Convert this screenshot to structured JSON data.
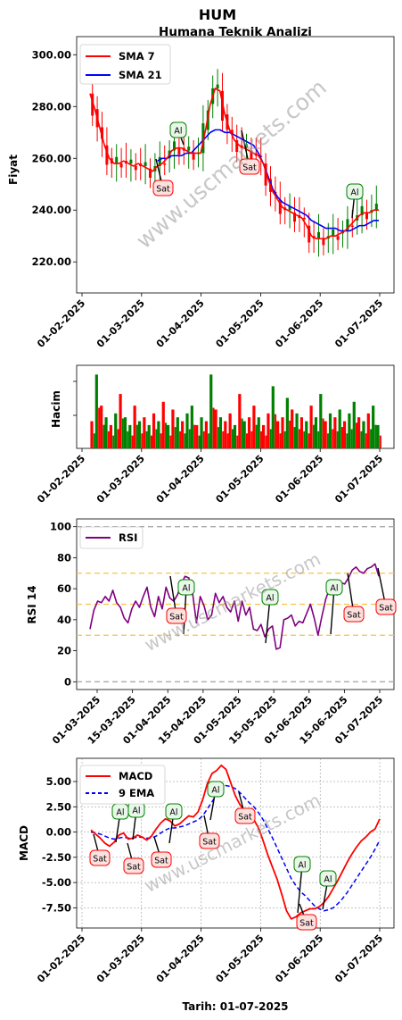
{
  "header": {
    "title": "HUM",
    "subtitle": "Humana Teknik Analizi"
  },
  "footer": {
    "date_label": "Tarih: 01-07-2025"
  },
  "watermark": "www.uscmarkets.com",
  "colors": {
    "sma7": "#ff0000",
    "sma21": "#0000ff",
    "rsi": "#800080",
    "macd": "#ff0000",
    "ema9": "#0000ff",
    "up": "#008000",
    "down": "#ff0000"
  },
  "chart_data": [
    {
      "type": "line",
      "title": "Humana Teknik Analizi",
      "ylabel": "Fiyat",
      "ylim": [
        208,
        307
      ],
      "y_ticks": [
        "220.00",
        "240.00",
        "260.00",
        "280.00",
        "300.00"
      ],
      "x_ticks": [
        "01-02-2025",
        "01-03-2025",
        "01-04-2025",
        "01-05-2025",
        "01-06-2025",
        "01-07-2025"
      ],
      "legend": "top-left",
      "series": [
        {
          "name": "SMA 7",
          "values": [
            285,
            279,
            272,
            265,
            260,
            258,
            258,
            259,
            258,
            257,
            258,
            257,
            256,
            255,
            257,
            258,
            260,
            263,
            264,
            264,
            263,
            262,
            262,
            262,
            271,
            281,
            287,
            286,
            277,
            271,
            267,
            265,
            264,
            263,
            262,
            261,
            258,
            252,
            247,
            244,
            241,
            240,
            239,
            238,
            237,
            234,
            230,
            229,
            229,
            229,
            230,
            230,
            231,
            232,
            234,
            236,
            238,
            239,
            239,
            240,
            240
          ]
        },
        {
          "name": "SMA 21",
          "values": [
            null,
            null,
            null,
            null,
            null,
            null,
            null,
            null,
            null,
            null,
            null,
            null,
            null,
            null,
            259,
            260,
            260,
            261,
            261,
            261,
            262,
            262,
            264,
            266,
            268,
            270,
            271,
            271,
            270,
            270,
            269,
            268,
            267,
            266,
            265,
            262,
            258,
            253,
            248,
            245,
            243,
            242,
            241,
            240,
            239,
            238,
            236,
            235,
            234,
            233,
            233,
            233,
            232,
            232,
            232,
            233,
            234,
            234,
            235,
            236,
            236
          ]
        }
      ],
      "annotations": [
        "Al",
        "Al",
        "Sat",
        "Sat"
      ]
    },
    {
      "type": "bar",
      "ylabel": "Hacim",
      "x_ticks": [
        "01-02-2025",
        "01-03-2025",
        "01-04-2025",
        "01-05-2025",
        "01-06-2025",
        "01-07-2025"
      ],
      "values": [
        0.35,
        0.95,
        0.55,
        0.4,
        0.3,
        0.45,
        0.7,
        0.4,
        0.3,
        0.55,
        0.35,
        0.4,
        0.3,
        0.45,
        0.35,
        0.6,
        0.3,
        0.5,
        0.4,
        0.35,
        0.45,
        0.55,
        0.3,
        0.4,
        0.35,
        0.95,
        0.5,
        0.4,
        0.35,
        0.45,
        0.3,
        0.7,
        0.35,
        0.4,
        0.55,
        0.4,
        0.3,
        0.45,
        0.8,
        0.35,
        0.4,
        0.65,
        0.5,
        0.45,
        0.4,
        0.35,
        0.55,
        0.4,
        0.7,
        0.35,
        0.45,
        0.4,
        0.5,
        0.35,
        0.45,
        0.6,
        0.4,
        0.35,
        0.45,
        0.55,
        0.3
      ],
      "direction": [
        "d",
        "u",
        "d",
        "u",
        "d",
        "u",
        "d",
        "u",
        "u",
        "d",
        "u",
        "d",
        "u",
        "d",
        "u",
        "d",
        "u",
        "d",
        "u",
        "d",
        "u",
        "u",
        "d",
        "u",
        "d",
        "u",
        "d",
        "u",
        "d",
        "d",
        "u",
        "d",
        "u",
        "d",
        "d",
        "u",
        "d",
        "d",
        "u",
        "d",
        "d",
        "u",
        "d",
        "u",
        "d",
        "u",
        "d",
        "u",
        "u",
        "d",
        "u",
        "d",
        "u",
        "d",
        "u",
        "u",
        "d",
        "u",
        "d",
        "u",
        "u"
      ]
    },
    {
      "type": "line",
      "ylabel": "RSI 14",
      "ylim": [
        -5,
        105
      ],
      "y_ticks": [
        "0",
        "20",
        "40",
        "60",
        "80",
        "100"
      ],
      "x_ticks": [
        "01-03-2025",
        "15-03-2025",
        "01-04-2025",
        "15-04-2025",
        "01-05-2025",
        "15-05-2025",
        "01-06-2025",
        "15-06-2025",
        "01-07-2025"
      ],
      "reference_lines": [
        0,
        30,
        50,
        70,
        100
      ],
      "legend": "top-left",
      "series": [
        {
          "name": "RSI",
          "values": [
            34,
            46,
            52,
            51,
            55,
            52,
            59,
            51,
            48,
            41,
            38,
            47,
            52,
            48,
            55,
            61,
            48,
            42,
            55,
            47,
            61,
            54,
            52,
            56,
            63,
            68,
            67,
            57,
            38,
            55,
            49,
            40,
            43,
            57,
            51,
            55,
            48,
            45,
            52,
            39,
            52,
            43,
            48,
            34,
            33,
            37,
            29,
            34,
            36,
            21,
            22,
            40,
            41,
            43,
            36,
            39,
            38,
            44,
            50,
            41,
            30,
            42,
            53,
            60,
            58,
            56,
            64,
            63,
            67,
            72,
            74,
            71,
            70,
            73,
            74,
            76,
            68
          ]
        }
      ],
      "annotations": [
        "Al",
        "Al",
        "Al",
        "Sat",
        "Sat",
        "Sat"
      ]
    },
    {
      "type": "line",
      "ylabel": "MACD",
      "ylim": [
        -9.5,
        7.3
      ],
      "y_ticks": [
        "-7.50",
        "-5.00",
        "-2.50",
        "0.00",
        "2.50",
        "5.00"
      ],
      "x_ticks": [
        "01-02-2025",
        "01-03-2025",
        "01-04-2025",
        "01-05-2025",
        "01-06-2025",
        "01-07-2025"
      ],
      "legend": "top-left",
      "series": [
        {
          "name": "MACD",
          "values": [
            0.2,
            -0.2,
            -0.6,
            -1.1,
            -1.4,
            -1.0,
            -0.3,
            -0.1,
            -0.7,
            -0.6,
            -0.3,
            -0.5,
            -0.8,
            -0.4,
            0.3,
            0.9,
            1.3,
            1.1,
            0.6,
            0.8,
            1.2,
            1.6,
            1.5,
            2.0,
            3.2,
            4.8,
            5.8,
            6.1,
            6.6,
            6.2,
            4.9,
            3.6,
            2.7,
            2.1,
            1.7,
            1.2,
            0.4,
            -0.9,
            -2.3,
            -3.5,
            -4.7,
            -6.2,
            -7.8,
            -8.6,
            -8.4,
            -8.0,
            -7.8,
            -7.6,
            -7.6,
            -7.4,
            -7.0,
            -6.4,
            -5.6,
            -4.8,
            -3.9,
            -3.0,
            -2.2,
            -1.5,
            -0.9,
            -0.5,
            0.0,
            0.3,
            1.3
          ]
        },
        {
          "name": "9 EMA",
          "values": [
            0.0,
            -0.1,
            -0.2,
            -0.4,
            -0.6,
            -0.7,
            -0.6,
            -0.5,
            -0.6,
            -0.6,
            -0.5,
            -0.5,
            -0.6,
            -0.6,
            -0.4,
            -0.1,
            0.2,
            0.4,
            0.4,
            0.5,
            0.6,
            0.8,
            1.0,
            1.2,
            1.6,
            2.3,
            3.0,
            3.7,
            4.3,
            4.6,
            4.5,
            4.3,
            3.9,
            3.4,
            2.9,
            2.5,
            1.9,
            1.2,
            0.3,
            -0.6,
            -1.6,
            -2.6,
            -3.6,
            -4.6,
            -5.3,
            -5.9,
            -6.3,
            -6.8,
            -7.3,
            -7.6,
            -7.8,
            -7.7,
            -7.5,
            -7.1,
            -6.6,
            -6.0,
            -5.3,
            -4.6,
            -3.9,
            -3.2,
            -2.5,
            -1.7,
            -0.8
          ]
        }
      ],
      "annotations": [
        "Al",
        "Al",
        "Al",
        "Al",
        "Al",
        "Al",
        "Sat",
        "Sat",
        "Sat",
        "Sat",
        "Sat",
        "Sat"
      ]
    }
  ]
}
